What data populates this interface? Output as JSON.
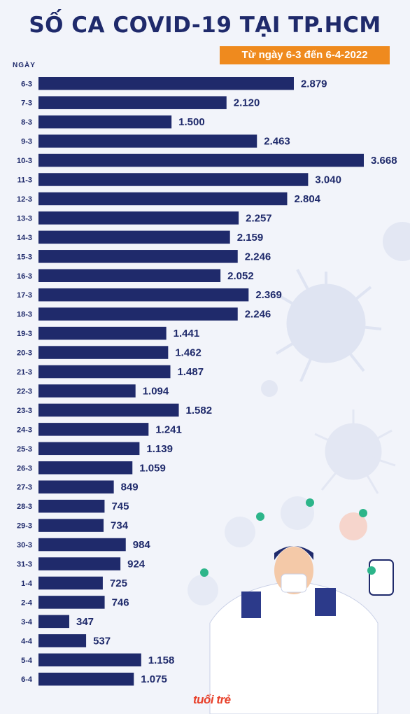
{
  "title": "SỐ CA COVID-19 TẠI TP.HCM",
  "subtitle": "Từ ngày 6-3 đến 6-4-2022",
  "logo_text": "tuổi trẻ",
  "colors": {
    "bar": "#1f2a6b",
    "title": "#1f2a6b",
    "subtitle_bg": "#ef8a1e",
    "background": "#f2f4fa",
    "logo": "#e8402a"
  },
  "chart_data": {
    "type": "bar",
    "orientation": "horizontal",
    "title": "SỐ CA COVID-19 TẠI TP.HCM",
    "subtitle": "Từ ngày 6-3 đến 6-4-2022",
    "ylabel": "NGÀY",
    "xlabel": "",
    "grid": false,
    "legend": "none",
    "xlim": [
      0,
      3668
    ],
    "categories": [
      "6-3",
      "7-3",
      "8-3",
      "9-3",
      "10-3",
      "11-3",
      "12-3",
      "13-3",
      "14-3",
      "15-3",
      "16-3",
      "17-3",
      "18-3",
      "19-3",
      "20-3",
      "21-3",
      "22-3",
      "23-3",
      "24-3",
      "25-3",
      "26-3",
      "27-3",
      "28-3",
      "29-3",
      "30-3",
      "31-3",
      "1-4",
      "2-4",
      "3-4",
      "4-4",
      "5-4",
      "6-4"
    ],
    "values": [
      2879,
      2120,
      1500,
      2463,
      3668,
      3040,
      2804,
      2257,
      2159,
      2246,
      2052,
      2369,
      2246,
      1441,
      1462,
      1487,
      1094,
      1582,
      1241,
      1139,
      1059,
      849,
      745,
      734,
      984,
      924,
      725,
      746,
      347,
      537,
      1158,
      1075
    ],
    "value_labels": [
      "2.879",
      "2.120",
      "1.500",
      "2.463",
      "3.668",
      "3.040",
      "2.804",
      "2.257",
      "2.159",
      "2.246",
      "2.052",
      "2.369",
      "2.246",
      "1.441",
      "1.462",
      "1.487",
      "1.094",
      "1.582",
      "1.241",
      "1.139",
      "1.059",
      "849",
      "745",
      "734",
      "984",
      "924",
      "725",
      "746",
      "347",
      "537",
      "1.158",
      "1.075"
    ]
  }
}
